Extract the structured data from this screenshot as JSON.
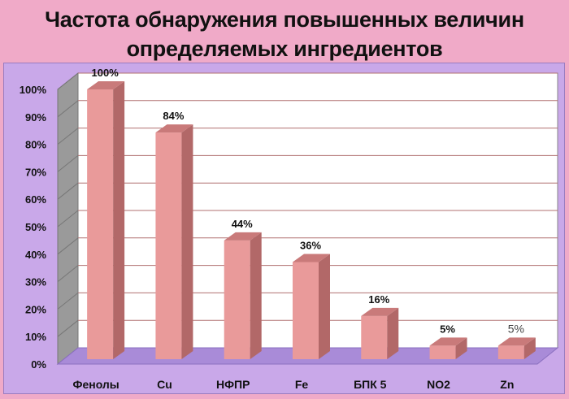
{
  "slide": {
    "title_line1": "Частота обнаружения повышенных величин",
    "title_line2": "определяемых ингредиентов"
  },
  "chart_data": {
    "type": "bar",
    "title": "",
    "categories": [
      "Фенолы",
      "Cu",
      "НФПР",
      "Fe",
      "БПК 5",
      "NO2",
      "Zn"
    ],
    "values": [
      100,
      84,
      44,
      36,
      16,
      5,
      5
    ],
    "data_labels": [
      "100%",
      "84%",
      "44%",
      "36%",
      "16%",
      "5%",
      "5%"
    ],
    "y_ticks": [
      "0%",
      "10%",
      "20%",
      "30%",
      "40%",
      "50%",
      "60%",
      "70%",
      "80%",
      "90%",
      "100%"
    ],
    "ylim": [
      0,
      100
    ],
    "grid": true,
    "legend": "none",
    "bar_color": "#e99a9a",
    "bar_side_color": "#b26868",
    "bar_top_color": "#c97a7a",
    "plot_background": "#ffffff",
    "floor_color": "#a98bd8",
    "gridline_color": "#b07070"
  }
}
